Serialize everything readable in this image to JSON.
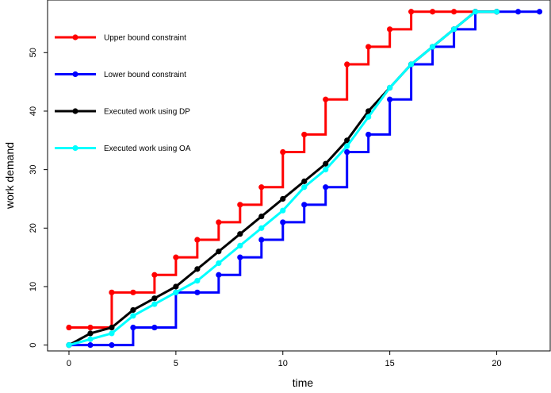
{
  "chart_data": {
    "type": "line",
    "xlabel": "time",
    "ylabel": "work demand",
    "xlim": [
      -1,
      22.5
    ],
    "ylim": [
      -1,
      59
    ],
    "xticks": [
      0,
      5,
      10,
      15,
      20
    ],
    "yticks": [
      0,
      10,
      20,
      30,
      40,
      50
    ],
    "legend_position": "top-left",
    "series": [
      {
        "name": "Upper bound constraint",
        "color": "#ff0000",
        "style": "step",
        "x": [
          0,
          1,
          2,
          3,
          4,
          5,
          6,
          7,
          8,
          9,
          10,
          11,
          12,
          13,
          14,
          15,
          16,
          17,
          18,
          19,
          20
        ],
        "values": [
          3,
          3,
          9,
          9,
          12,
          15,
          18,
          21,
          24,
          27,
          33,
          36,
          42,
          48,
          51,
          54,
          57,
          57,
          57,
          57,
          57
        ]
      },
      {
        "name": "Lower bound constraint",
        "color": "#0000ff",
        "style": "step",
        "x": [
          0,
          1,
          2,
          3,
          4,
          5,
          6,
          7,
          8,
          9,
          10,
          11,
          12,
          13,
          14,
          15,
          16,
          17,
          18,
          19,
          20,
          21,
          22
        ],
        "values": [
          0,
          0,
          0,
          3,
          3,
          9,
          9,
          12,
          15,
          18,
          21,
          24,
          27,
          33,
          36,
          42,
          48,
          51,
          54,
          57,
          57,
          57,
          57
        ]
      },
      {
        "name": "Executed work using DP",
        "color": "#000000",
        "style": "line",
        "x": [
          0,
          1,
          2,
          3,
          4,
          5,
          6,
          7,
          8,
          9,
          10,
          11,
          12,
          13,
          14,
          15,
          16,
          17,
          18,
          19,
          20
        ],
        "values": [
          0,
          2,
          3,
          6,
          8,
          10,
          13,
          16,
          19,
          22,
          25,
          28,
          31,
          35,
          40,
          44,
          48,
          51,
          54,
          57,
          57
        ]
      },
      {
        "name": "Executed work using OA",
        "color": "#00ffff",
        "style": "line",
        "x": [
          0,
          1,
          2,
          3,
          4,
          5,
          6,
          7,
          8,
          9,
          10,
          11,
          12,
          13,
          14,
          15,
          16,
          17,
          18,
          19,
          20
        ],
        "values": [
          0,
          1,
          2,
          5,
          7,
          9,
          11,
          14,
          17,
          20,
          23,
          27,
          30,
          34,
          39,
          44,
          48,
          51,
          54,
          57,
          57
        ]
      }
    ]
  }
}
